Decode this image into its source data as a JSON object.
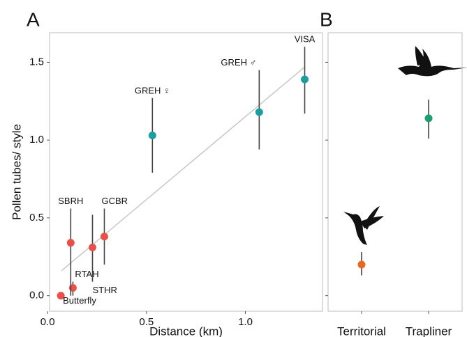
{
  "chart_data": [
    {
      "type": "scatter",
      "panel": "A",
      "xlabel": "Distance (km)",
      "ylabel": "Pollen tubes/ style",
      "xlim": [
        0.01,
        1.39
      ],
      "ylim": [
        -0.1,
        1.69
      ],
      "xticks": [
        {
          "value": 0,
          "label": "0.0"
        },
        {
          "value": 0.5,
          "label": "0.5"
        },
        {
          "value": 1,
          "label": "1.0"
        }
      ],
      "yticks": [
        {
          "value": 0,
          "label": "0.0"
        },
        {
          "value": 0.5,
          "label": "0.5"
        },
        {
          "value": 1,
          "label": "1.0"
        },
        {
          "value": 1.5,
          "label": "1.5"
        }
      ],
      "point_labels": [
        "Butterfly",
        "RTAH",
        "SBRH",
        "STHR",
        "GCBR",
        "GREH ♀",
        "GREH ♂",
        "VISA"
      ],
      "x": [
        0.067,
        0.128,
        0.117,
        0.227,
        0.287,
        0.53,
        1.07,
        1.3
      ],
      "values": [
        0.0,
        0.05,
        0.34,
        0.31,
        0.38,
        1.03,
        1.18,
        1.39
      ],
      "lower": [
        0.0,
        0.0,
        0.0,
        0.09,
        0.2,
        0.79,
        0.94,
        1.17
      ],
      "upper": [
        0.0,
        0.09,
        0.56,
        0.52,
        0.56,
        1.27,
        1.45,
        1.6
      ],
      "colors": [
        "#e8514a",
        "#e8514a",
        "#e8514a",
        "#e8514a",
        "#e8514a",
        "#1a9e9e",
        "#1a9e9e",
        "#1a9e9e"
      ],
      "fit_line": {
        "x": [
          0.07,
          1.3
        ],
        "y": [
          0.16,
          1.47
        ],
        "color": "#c4c4c4"
      }
    },
    {
      "type": "dot",
      "panel": "B",
      "ylim": [
        -0.1,
        1.69
      ],
      "yticks": [
        0,
        0.5,
        1,
        1.5
      ],
      "show_ytick_labels": false,
      "categories": [
        "Territorial",
        "Trapliner"
      ],
      "values": [
        0.2,
        1.14
      ],
      "lower": [
        0.13,
        1.01
      ],
      "upper": [
        0.28,
        1.26
      ],
      "colors": [
        "#e86a1e",
        "#1a9e72"
      ]
    }
  ]
}
